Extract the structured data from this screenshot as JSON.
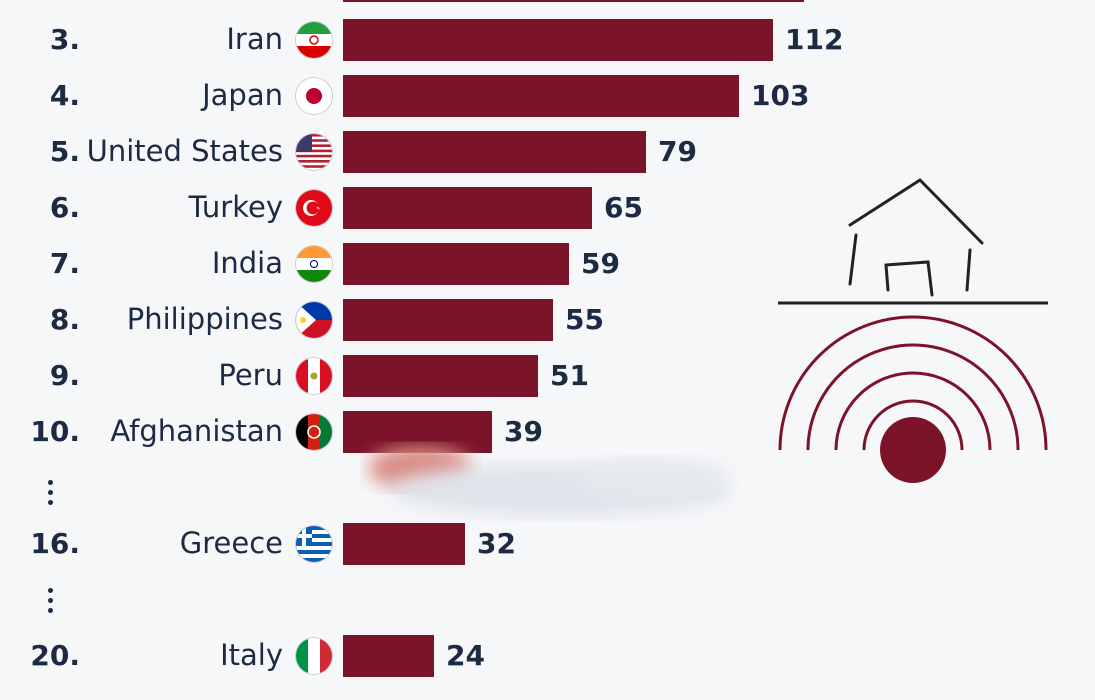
{
  "chart_data": {
    "type": "bar",
    "orientation": "horizontal",
    "rows": [
      {
        "rank": "",
        "country": "",
        "value": 120,
        "flag": "partial-flag-icon"
      },
      {
        "rank": "3.",
        "country": "Iran",
        "value": 112,
        "flag": "iran-flag-icon"
      },
      {
        "rank": "4.",
        "country": "Japan",
        "value": 103,
        "flag": "japan-flag-icon"
      },
      {
        "rank": "5.",
        "country": "United States",
        "value": 79,
        "flag": "usa-flag-icon"
      },
      {
        "rank": "6.",
        "country": "Turkey",
        "value": 65,
        "flag": "turkey-flag-icon"
      },
      {
        "rank": "7.",
        "country": "India",
        "value": 59,
        "flag": "india-flag-icon"
      },
      {
        "rank": "8.",
        "country": "Philippines",
        "value": 55,
        "flag": "philippines-flag-icon"
      },
      {
        "rank": "9.",
        "country": "Peru",
        "value": 51,
        "flag": "peru-flag-icon"
      },
      {
        "rank": "10.",
        "country": "Afghanistan",
        "value": 39,
        "flag": "afghanistan-flag-icon"
      },
      {
        "rank": "16.",
        "country": "Greece",
        "value": 32,
        "flag": "greece-flag-icon"
      },
      {
        "rank": "20.",
        "country": "Italy",
        "value": 24,
        "flag": "italy-flag-icon"
      }
    ],
    "bar_color": "#7b1428",
    "text_color": "#1c2a44",
    "background": "#f6f7f9"
  },
  "decoration": {
    "icon": "earthquake-house-icon",
    "color": "#7b1428"
  }
}
